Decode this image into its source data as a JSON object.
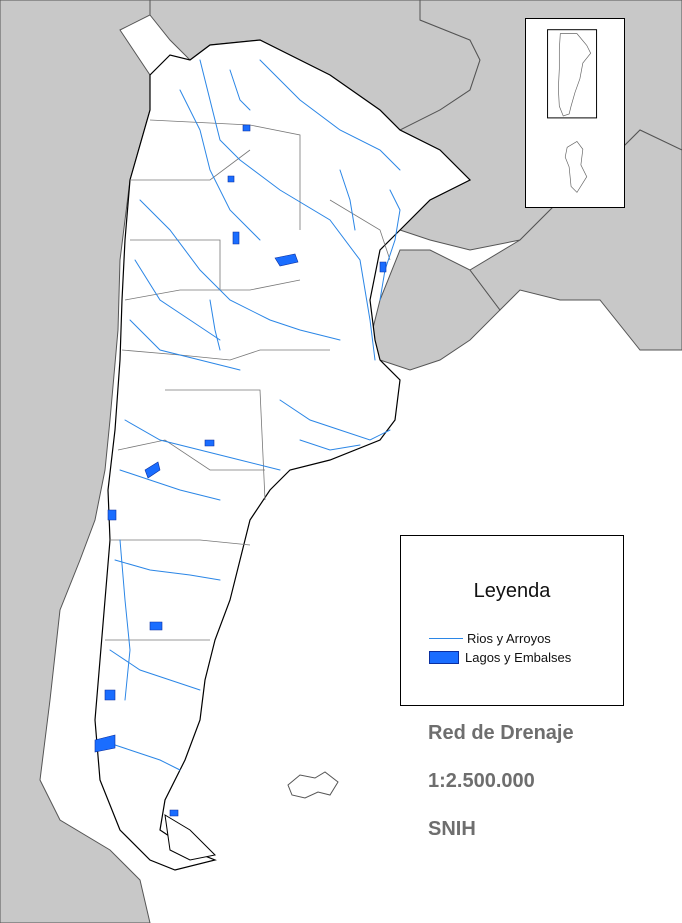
{
  "legend": {
    "title": "Leyenda",
    "items": [
      {
        "label": "Rios y Arroyos",
        "symbol": "river-line-icon",
        "color": "#2b86e6"
      },
      {
        "label": "Lagos y Embalses",
        "symbol": "lake-fill-icon",
        "color": "#1a6dff"
      }
    ]
  },
  "map_info": {
    "title": "Red de Drenaje",
    "scale": "1:2.500.000",
    "source": "SNIH"
  },
  "colors": {
    "neighbor_land": "#c8c8c8",
    "sea": "#ffffff",
    "river": "#2b86e6",
    "lake": "#1a6dff",
    "border": "#000000"
  }
}
